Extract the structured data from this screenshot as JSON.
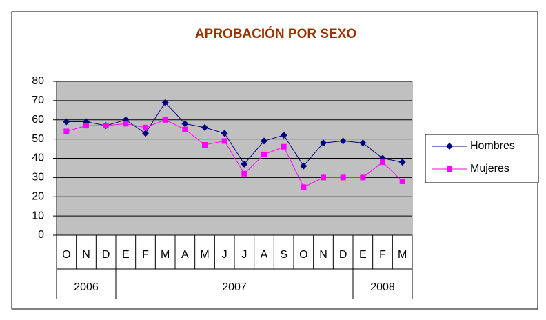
{
  "chart_data": {
    "type": "line",
    "title": "APROBACIÓN POR SEXO",
    "category_groups": [
      {
        "label": "2006",
        "categories": [
          "O",
          "N",
          "D"
        ]
      },
      {
        "label": "2007",
        "categories": [
          "E",
          "F",
          "M",
          "A",
          "M",
          "J",
          "J",
          "A",
          "S",
          "O",
          "N",
          "D"
        ]
      },
      {
        "label": "2008",
        "categories": [
          "E",
          "F",
          "M"
        ]
      }
    ],
    "series": [
      {
        "name": "Hombres",
        "color": "#000080",
        "marker": "diamond",
        "values": [
          59,
          59,
          57,
          60,
          53,
          69,
          58,
          56,
          53,
          37,
          49,
          52,
          36,
          48,
          49,
          48,
          40,
          38
        ]
      },
      {
        "name": "Mujeres",
        "color": "#ff00ff",
        "marker": "square",
        "values": [
          54,
          57,
          57,
          58,
          56,
          60,
          55,
          47,
          49,
          32,
          42,
          46,
          25,
          30,
          30,
          30,
          38,
          28
        ]
      }
    ],
    "ylim": [
      0,
      80
    ],
    "yticks": [
      0,
      10,
      20,
      30,
      40,
      50,
      60,
      70,
      80
    ],
    "grid": true,
    "legend": "right"
  }
}
